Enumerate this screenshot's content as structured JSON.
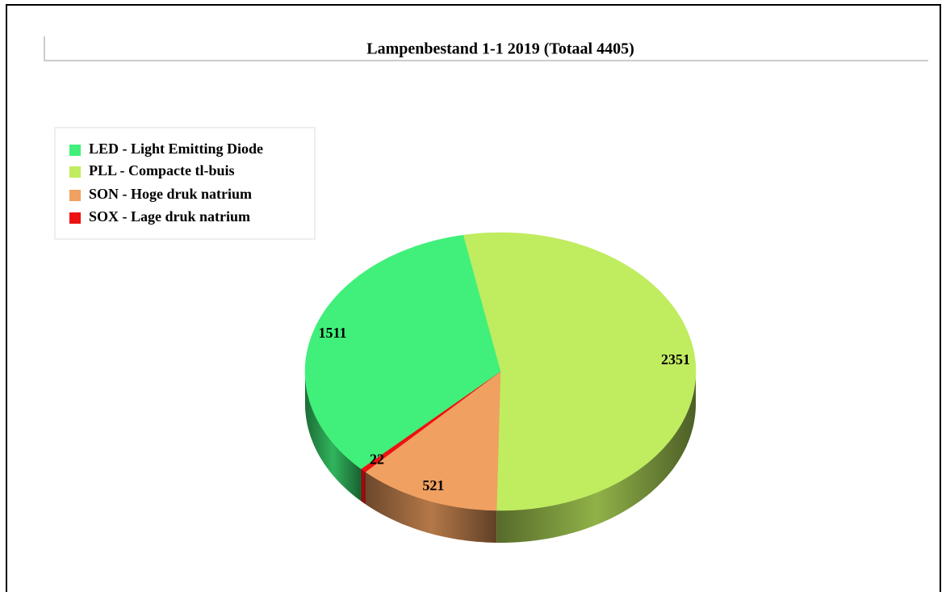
{
  "chart_data": {
    "type": "pie",
    "title": "Lampenbestand 1-1 2019 (Totaal 4405)",
    "categories": [
      "LED - Light Emitting Diode",
      "PLL - Compacte tl-buis",
      "SON - Hoge druk natrium",
      "SOX - Lage druk natrium"
    ],
    "values": [
      1511,
      2351,
      521,
      22
    ],
    "colors": [
      "#40f07a",
      "#c0ec60",
      "#f0a060",
      "#ee1111"
    ],
    "legend": "upper left"
  }
}
